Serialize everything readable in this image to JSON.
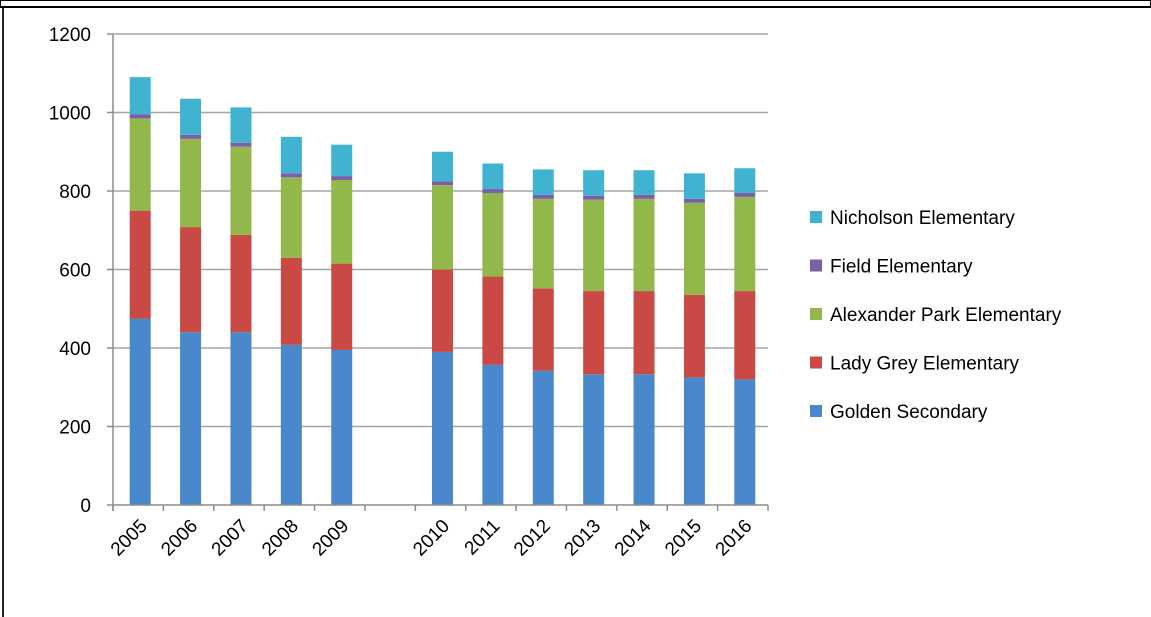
{
  "chart_data": {
    "type": "bar",
    "stacked": true,
    "categories": [
      "2005",
      "2006",
      "2007",
      "2008",
      "2009",
      "",
      "2010",
      "2011",
      "2012",
      "2013",
      "2014",
      "2015",
      "2016"
    ],
    "series": [
      {
        "name": "Golden Secondary",
        "color": "#4a88cc",
        "values": [
          475,
          440,
          440,
          408,
          395,
          null,
          390,
          357,
          342,
          333,
          333,
          325,
          320
        ]
      },
      {
        "name": "Lady Grey Elementary",
        "color": "#c94a45",
        "values": [
          275,
          268,
          248,
          222,
          220,
          null,
          210,
          225,
          210,
          212,
          212,
          210,
          225
        ]
      },
      {
        "name": "Alexander Park Elementary",
        "color": "#92b74a",
        "values": [
          235,
          225,
          225,
          205,
          213,
          null,
          215,
          213,
          228,
          233,
          235,
          235,
          240
        ]
      },
      {
        "name": "Field Elementary",
        "color": "#7d5ea8",
        "values": [
          10,
          10,
          10,
          10,
          10,
          null,
          10,
          10,
          10,
          10,
          10,
          10,
          10
        ]
      },
      {
        "name": "Nicholson Elementary",
        "color": "#3fb3cf",
        "values": [
          95,
          92,
          90,
          93,
          80,
          null,
          75,
          65,
          65,
          65,
          63,
          65,
          63
        ]
      }
    ],
    "legend_order": [
      "Nicholson Elementary",
      "Field Elementary",
      "Alexander Park Elementary",
      "Lady Grey Elementary",
      "Golden Secondary"
    ],
    "y_ticks": [
      "0",
      "200",
      "400",
      "600",
      "800",
      "1000",
      "1200"
    ],
    "ylim": [
      0,
      1200
    ],
    "grid": true,
    "legend_position": "right"
  }
}
